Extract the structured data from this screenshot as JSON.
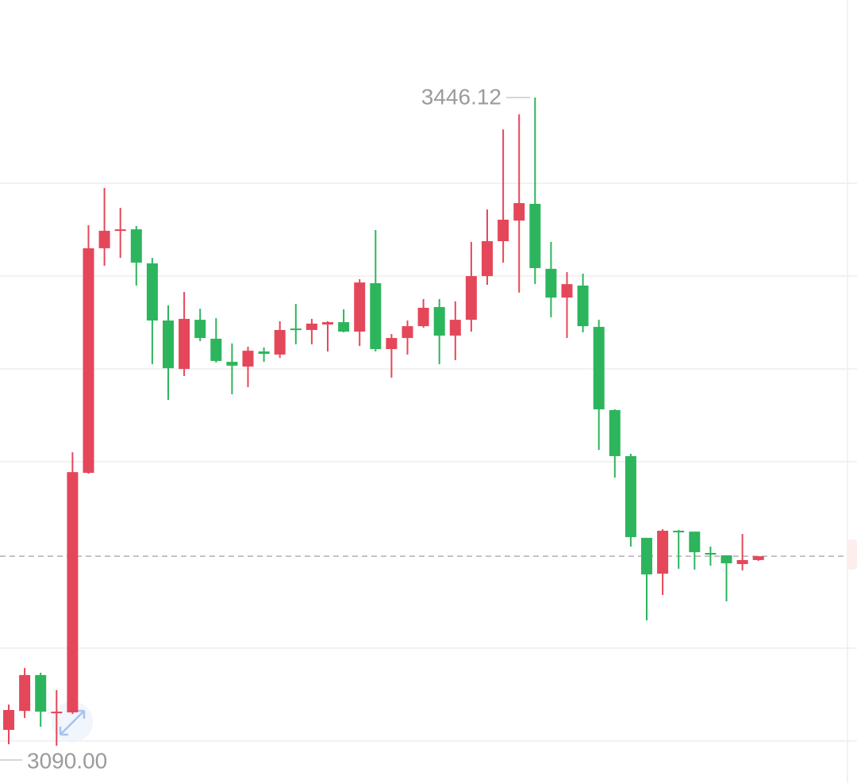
{
  "chart_data": {
    "type": "candlestick",
    "up_color": "#e5475a",
    "down_color": "#2db55d",
    "ylim": [
      3069.5,
      3499.7
    ],
    "open": [
      3098.7,
      3109.1,
      3128.8,
      3107.8,
      3108.3,
      3239.9,
      3363.3,
      3372.9,
      3373.7,
      3355.0,
      3323.6,
      3297.0,
      3324.0,
      3313.6,
      3300.9,
      3298.3,
      3306.6,
      3304.9,
      3319.2,
      3318.4,
      3321.4,
      3322.7,
      3317.5,
      3344.1,
      3307.9,
      3314.0,
      3320.5,
      3331.0,
      3315.3,
      3324.0,
      3348.0,
      3367.2,
      3378.5,
      3387.7,
      3352.0,
      3336.2,
      3342.8,
      3320.1,
      3274.4,
      3249.1,
      3204.2,
      3184.5,
      3208.1,
      3207.6,
      3195.9,
      3194.6,
      3189.8,
      3192.0
    ],
    "high": [
      3112.6,
      3132.7,
      3130.1,
      3120.5,
      3251.2,
      3375.9,
      3396.4,
      3385.5,
      3375.5,
      3358.0,
      3331.9,
      3339.3,
      3330.1,
      3324.9,
      3311.0,
      3309.2,
      3308.8,
      3323.2,
      3332.7,
      3324.5,
      3323.2,
      3329.7,
      3346.3,
      3373.3,
      3316.2,
      3323.6,
      3335.4,
      3335.4,
      3334.1,
      3366.8,
      3384.6,
      3428.6,
      3436.9,
      3446.12,
      3366.8,
      3350.2,
      3349.3,
      3324.0,
      3274.8,
      3250.4,
      3204.2,
      3208.9,
      3208.5,
      3207.6,
      3199.4,
      3194.6,
      3206.3,
      3194.1
    ],
    "low": [
      3090.8,
      3105.2,
      3100.4,
      3090,
      3107.4,
      3239.5,
      3353.7,
      3358.0,
      3342.8,
      3299.6,
      3280.0,
      3293.1,
      3312.3,
      3300.5,
      3283.1,
      3287.0,
      3300.9,
      3303.1,
      3310.5,
      3310.5,
      3306.6,
      3317.1,
      3309.6,
      3306.6,
      3292.2,
      3304.9,
      3319.7,
      3299.6,
      3301.8,
      3317.5,
      3343.2,
      3355.4,
      3338.9,
      3343.6,
      3325.4,
      3314.0,
      3317.1,
      3252.5,
      3237.3,
      3199.4,
      3158.8,
      3172.8,
      3187.2,
      3186.7,
      3188.9,
      3169.3,
      3186.3,
      3191.5
    ],
    "close": [
      3109.6,
      3128.8,
      3108.7,
      3108.7,
      3240.3,
      3363.3,
      3372.9,
      3373.7,
      3355.4,
      3323.6,
      3297.4,
      3324.5,
      3314.0,
      3301.4,
      3298.8,
      3307.0,
      3305.3,
      3318.4,
      3318.4,
      3321.9,
      3322.7,
      3317.5,
      3344.5,
      3307.9,
      3314.0,
      3320.5,
      3330.6,
      3315.3,
      3324.0,
      3348.0,
      3367.2,
      3379.0,
      3388.1,
      3352.4,
      3336.2,
      3343.6,
      3320.5,
      3274.8,
      3249.1,
      3204.6,
      3184.1,
      3208.1,
      3207.2,
      3196.3,
      3195.0,
      3190.2,
      3192.0,
      3194.1
    ],
    "annotations": [
      {
        "value": 3446.12,
        "label": "3446.12"
      },
      {
        "value": 3090,
        "label": "3090.00"
      }
    ]
  }
}
